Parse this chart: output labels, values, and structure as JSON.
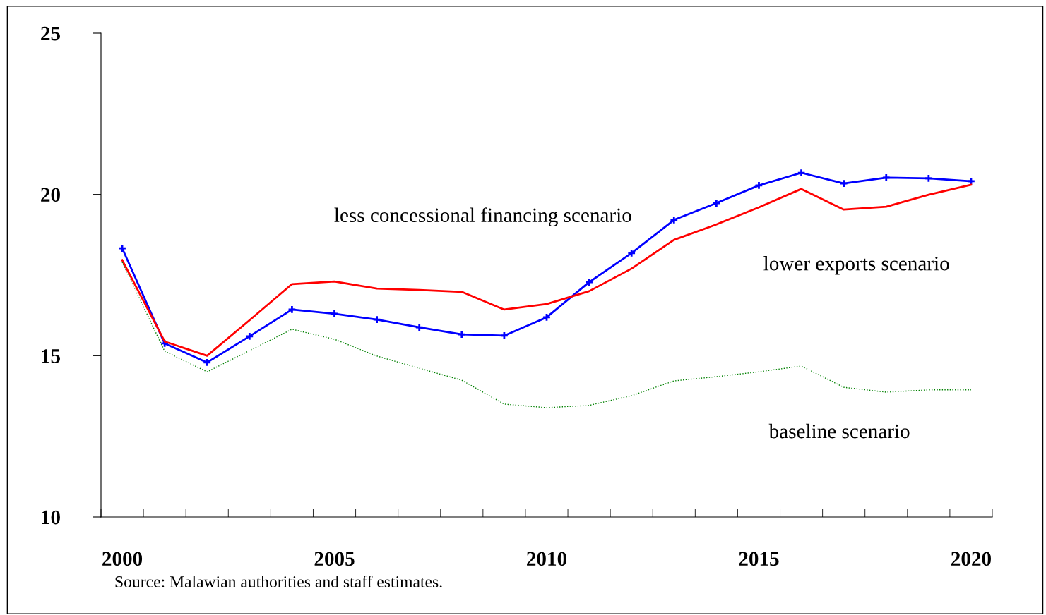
{
  "chart_data": {
    "type": "line",
    "categories": [
      "2000",
      null,
      null,
      null,
      null,
      "2005",
      null,
      null,
      null,
      null,
      "2010",
      null,
      null,
      null,
      null,
      "2015",
      null,
      null,
      null,
      null,
      "2020"
    ],
    "ylim": [
      10,
      25
    ],
    "yticks": [
      10,
      15,
      20,
      25
    ],
    "grid": false,
    "series": [
      {
        "name": "less concessional financing scenario",
        "color": "#0000ff",
        "marker": "cross",
        "line_style": "solid",
        "values": [
          18.33,
          15.38,
          14.79,
          15.6,
          16.43,
          16.3,
          16.12,
          15.88,
          15.66,
          15.62,
          16.19,
          17.28,
          18.18,
          19.21,
          19.73,
          20.28,
          20.67,
          20.34,
          20.52,
          20.5,
          20.41
        ]
      },
      {
        "name": "lower exports scenario",
        "color": "#ff0000",
        "marker": "none",
        "line_style": "solid",
        "values": [
          17.96,
          15.44,
          15.0,
          16.1,
          17.22,
          17.3,
          17.08,
          17.04,
          16.98,
          16.43,
          16.6,
          17.0,
          17.7,
          18.59,
          19.07,
          19.6,
          20.17,
          19.53,
          19.62,
          19.99,
          20.3
        ]
      },
      {
        "name": "baseline scenario",
        "color": "#008000",
        "marker": "none",
        "line_style": "dotted",
        "values": [
          17.9,
          15.14,
          14.5,
          15.16,
          15.82,
          15.51,
          14.99,
          14.61,
          14.24,
          13.5,
          13.39,
          13.46,
          13.76,
          14.22,
          14.35,
          14.5,
          14.68,
          14.02,
          13.87,
          13.94,
          13.94
        ]
      }
    ],
    "annotations": [
      "Source: Malawian authorities and staff estimates."
    ]
  }
}
